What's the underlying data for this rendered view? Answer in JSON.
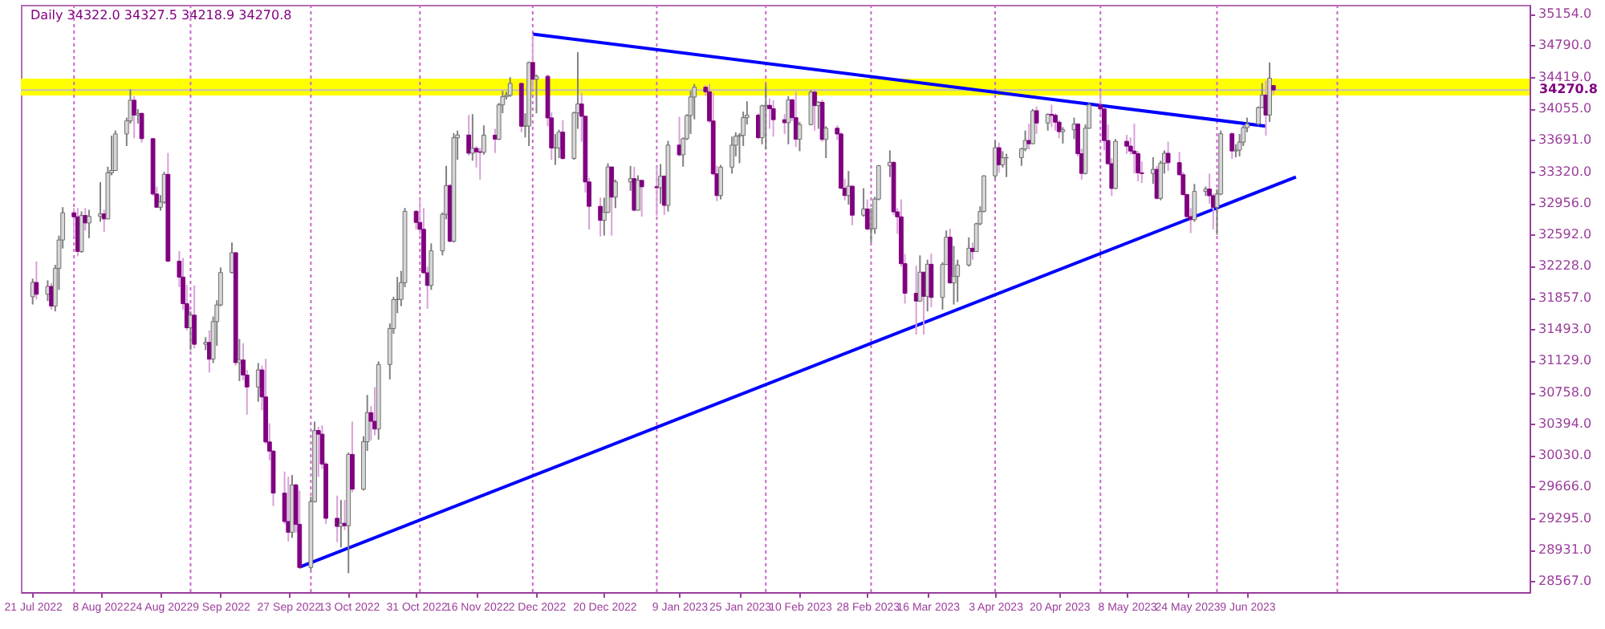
{
  "chart_data": {
    "type": "candlestick",
    "title": "Daily 34322.0 34327.5 34218.9 34270.8",
    "x": [
      "2022-07-21",
      "2022-07-22",
      "2022-07-25",
      "2022-07-26",
      "2022-07-27",
      "2022-07-28",
      "2022-07-29",
      "2022-08-01",
      "2022-08-02",
      "2022-08-03",
      "2022-08-04",
      "2022-08-05",
      "2022-08-08",
      "2022-08-09",
      "2022-08-10",
      "2022-08-11",
      "2022-08-12",
      "2022-08-15",
      "2022-08-16",
      "2022-08-17",
      "2022-08-18",
      "2022-08-19",
      "2022-08-22",
      "2022-08-23",
      "2022-08-24",
      "2022-08-25",
      "2022-08-26",
      "2022-08-29",
      "2022-08-30",
      "2022-08-31",
      "2022-09-01",
      "2022-09-02",
      "2022-09-05",
      "2022-09-06",
      "2022-09-07",
      "2022-09-08",
      "2022-09-09",
      "2022-09-12",
      "2022-09-13",
      "2022-09-14",
      "2022-09-15",
      "2022-09-16",
      "2022-09-19",
      "2022-09-20",
      "2022-09-21",
      "2022-09-22",
      "2022-09-23",
      "2022-09-26",
      "2022-09-27",
      "2022-09-28",
      "2022-09-29",
      "2022-09-30",
      "2022-10-03",
      "2022-10-04",
      "2022-10-05",
      "2022-10-06",
      "2022-10-07",
      "2022-10-10",
      "2022-10-11",
      "2022-10-12",
      "2022-10-13",
      "2022-10-14",
      "2022-10-17",
      "2022-10-18",
      "2022-10-19",
      "2022-10-20",
      "2022-10-21",
      "2022-10-24",
      "2022-10-25",
      "2022-10-26",
      "2022-10-27",
      "2022-10-28",
      "2022-10-31",
      "2022-11-01",
      "2022-11-02",
      "2022-11-03",
      "2022-11-04",
      "2022-11-07",
      "2022-11-08",
      "2022-11-09",
      "2022-11-10",
      "2022-11-11",
      "2022-11-14",
      "2022-11-15",
      "2022-11-16",
      "2022-11-17",
      "2022-11-18",
      "2022-11-21",
      "2022-11-22",
      "2022-11-23",
      "2022-11-24",
      "2022-11-25",
      "2022-11-28",
      "2022-11-29",
      "2022-11-30",
      "2022-12-01",
      "2022-12-02",
      "2022-12-05",
      "2022-12-06",
      "2022-12-07",
      "2022-12-08",
      "2022-12-09",
      "2022-12-12",
      "2022-12-13",
      "2022-12-14",
      "2022-12-15",
      "2022-12-16",
      "2022-12-19",
      "2022-12-20",
      "2022-12-21",
      "2022-12-22",
      "2022-12-23",
      "2022-12-27",
      "2022-12-28",
      "2022-12-29",
      "2022-12-30",
      "2023-01-03",
      "2023-01-04",
      "2023-01-05",
      "2023-01-06",
      "2023-01-09",
      "2023-01-10",
      "2023-01-11",
      "2023-01-12",
      "2023-01-13",
      "2023-01-16",
      "2023-01-17",
      "2023-01-18",
      "2023-01-19",
      "2023-01-20",
      "2023-01-23",
      "2023-01-24",
      "2023-01-25",
      "2023-01-26",
      "2023-01-27",
      "2023-01-30",
      "2023-01-31",
      "2023-02-01",
      "2023-02-02",
      "2023-02-03",
      "2023-02-06",
      "2023-02-07",
      "2023-02-08",
      "2023-02-09",
      "2023-02-10",
      "2023-02-13",
      "2023-02-14",
      "2023-02-15",
      "2023-02-16",
      "2023-02-17",
      "2023-02-20",
      "2023-02-21",
      "2023-02-22",
      "2023-02-23",
      "2023-02-24",
      "2023-02-27",
      "2023-02-28",
      "2023-03-01",
      "2023-03-02",
      "2023-03-03",
      "2023-03-06",
      "2023-03-07",
      "2023-03-08",
      "2023-03-09",
      "2023-03-10",
      "2023-03-13",
      "2023-03-14",
      "2023-03-15",
      "2023-03-16",
      "2023-03-17",
      "2023-03-20",
      "2023-03-21",
      "2023-03-22",
      "2023-03-23",
      "2023-03-24",
      "2023-03-27",
      "2023-03-28",
      "2023-03-29",
      "2023-03-30",
      "2023-03-31",
      "2023-04-03",
      "2023-04-04",
      "2023-04-05",
      "2023-04-06",
      "2023-04-10",
      "2023-04-11",
      "2023-04-12",
      "2023-04-13",
      "2023-04-14",
      "2023-04-17",
      "2023-04-18",
      "2023-04-19",
      "2023-04-20",
      "2023-04-21",
      "2023-04-24",
      "2023-04-25",
      "2023-04-26",
      "2023-04-27",
      "2023-04-28",
      "2023-05-01",
      "2023-05-02",
      "2023-05-03",
      "2023-05-04",
      "2023-05-05",
      "2023-05-08",
      "2023-05-09",
      "2023-05-10",
      "2023-05-11",
      "2023-05-12",
      "2023-05-15",
      "2023-05-16",
      "2023-05-17",
      "2023-05-18",
      "2023-05-19",
      "2023-05-22",
      "2023-05-23",
      "2023-05-24",
      "2023-05-25",
      "2023-05-26",
      "2023-05-29",
      "2023-05-30",
      "2023-05-31",
      "2023-06-01",
      "2023-06-02",
      "2023-06-05",
      "2023-06-06",
      "2023-06-07",
      "2023-06-08",
      "2023-06-09",
      "2023-06-12",
      "2023-06-13",
      "2023-06-14",
      "2023-06-15",
      "2023-06-16"
    ],
    "ohlc": [
      [
        31870,
        32080,
        31780,
        32036
      ],
      [
        32036,
        32280,
        31840,
        31899
      ],
      [
        31899,
        32060,
        31820,
        31990
      ],
      [
        31990,
        32030,
        31720,
        31762
      ],
      [
        31762,
        32240,
        31700,
        32198
      ],
      [
        32198,
        32580,
        31950,
        32529
      ],
      [
        32529,
        32910,
        32430,
        32845
      ],
      [
        32845,
        32900,
        32570,
        32798
      ],
      [
        32798,
        32900,
        32340,
        32396
      ],
      [
        32396,
        32860,
        32380,
        32813
      ],
      [
        32813,
        32900,
        32640,
        32727
      ],
      [
        32727,
        32880,
        32550,
        32803
      ],
      [
        32803,
        33200,
        32740,
        32832
      ],
      [
        32832,
        32880,
        32620,
        32774
      ],
      [
        32774,
        33380,
        32770,
        33309
      ],
      [
        33309,
        33740,
        33280,
        33336
      ],
      [
        33336,
        33800,
        33330,
        33761
      ],
      [
        33761,
        33950,
        33620,
        33912
      ],
      [
        33912,
        34280,
        33880,
        34152
      ],
      [
        34152,
        34200,
        33710,
        33980
      ],
      [
        33980,
        34050,
        33880,
        33999
      ],
      [
        33999,
        34010,
        33660,
        33706
      ],
      [
        33706,
        33710,
        33040,
        33063
      ],
      [
        33063,
        33150,
        32900,
        32909
      ],
      [
        32909,
        33050,
        32870,
        32969
      ],
      [
        32969,
        33320,
        32950,
        33291
      ],
      [
        33291,
        33540,
        32270,
        32283
      ],
      [
        32283,
        32400,
        31980,
        32098
      ],
      [
        32098,
        32320,
        31720,
        31790
      ],
      [
        31790,
        32010,
        31480,
        31510
      ],
      [
        31510,
        31700,
        31250,
        31656
      ],
      [
        31656,
        32000,
        31270,
        31318
      ],
      [
        31318,
        31400,
        31250,
        31340
      ],
      [
        31340,
        31480,
        30990,
        31145
      ],
      [
        31145,
        31640,
        31100,
        31581
      ],
      [
        31581,
        31830,
        31300,
        31775
      ],
      [
        31775,
        32210,
        31760,
        32151
      ],
      [
        32151,
        32500,
        32140,
        32381
      ],
      [
        32381,
        32390,
        31070,
        31105
      ],
      [
        31105,
        31380,
        30890,
        31135
      ],
      [
        31135,
        31330,
        30900,
        30961
      ],
      [
        30961,
        31020,
        30500,
        30822
      ],
      [
        30822,
        31100,
        30650,
        31020
      ],
      [
        31020,
        31070,
        30550,
        30706
      ],
      [
        30706,
        31150,
        30160,
        30184
      ],
      [
        30184,
        30400,
        29970,
        30077
      ],
      [
        30077,
        30090,
        29440,
        29590
      ],
      [
        29590,
        29840,
        29230,
        29260
      ],
      [
        29260,
        29780,
        29030,
        29135
      ],
      [
        29135,
        29800,
        29070,
        29684
      ],
      [
        29684,
        29700,
        29130,
        29226
      ],
      [
        29226,
        29620,
        28710,
        28726
      ],
      [
        28726,
        29550,
        28700,
        29490
      ],
      [
        29490,
        30420,
        29480,
        30316
      ],
      [
        30316,
        30360,
        29780,
        30274
      ],
      [
        30274,
        30380,
        29870,
        29927
      ],
      [
        29927,
        29950,
        29230,
        29297
      ],
      [
        29297,
        29560,
        29020,
        29203
      ],
      [
        29203,
        29510,
        28960,
        29240
      ],
      [
        29240,
        29510,
        29160,
        29211
      ],
      [
        29211,
        30060,
        28660,
        30039
      ],
      [
        30039,
        30420,
        29600,
        29635
      ],
      [
        29635,
        30250,
        29620,
        30186
      ],
      [
        30186,
        30730,
        30080,
        30524
      ],
      [
        30524,
        30600,
        30200,
        30424
      ],
      [
        30424,
        30820,
        30260,
        30334
      ],
      [
        30334,
        31120,
        30210,
        31083
      ],
      [
        31083,
        31560,
        30910,
        31500
      ],
      [
        31500,
        31870,
        31440,
        31837
      ],
      [
        31837,
        32100,
        31680,
        31839
      ],
      [
        31839,
        32170,
        31760,
        32034
      ],
      [
        32034,
        32900,
        31980,
        32862
      ],
      [
        32862,
        32880,
        32650,
        32733
      ],
      [
        32733,
        33010,
        32590,
        32653
      ],
      [
        32653,
        32900,
        32140,
        32148
      ],
      [
        32148,
        32220,
        31730,
        32001
      ],
      [
        32001,
        32490,
        31950,
        32403
      ],
      [
        32403,
        32850,
        32350,
        32827
      ],
      [
        32827,
        33390,
        32770,
        33161
      ],
      [
        33161,
        33180,
        32500,
        32514
      ],
      [
        32514,
        33770,
        32500,
        33716
      ],
      [
        33716,
        33800,
        33460,
        33748
      ],
      [
        33748,
        33980,
        33510,
        33537
      ],
      [
        33537,
        33990,
        33450,
        33593
      ],
      [
        33593,
        33620,
        33370,
        33553
      ],
      [
        33553,
        33600,
        33230,
        33547
      ],
      [
        33547,
        33860,
        33520,
        33746
      ],
      [
        33746,
        33820,
        33540,
        33700
      ],
      [
        33700,
        34120,
        33690,
        34098
      ],
      [
        34098,
        34260,
        34000,
        34194
      ],
      [
        34194,
        34250,
        34160,
        34210
      ],
      [
        34210,
        34420,
        34190,
        34347
      ],
      [
        34347,
        34360,
        33780,
        33850
      ],
      [
        33850,
        34000,
        33720,
        33853
      ],
      [
        33853,
        34600,
        33620,
        34590
      ],
      [
        34590,
        34920,
        34270,
        34395
      ],
      [
        34395,
        34450,
        34000,
        34430
      ],
      [
        34430,
        34450,
        33850,
        33947
      ],
      [
        33947,
        34010,
        33460,
        33597
      ],
      [
        33597,
        33760,
        33400,
        33598
      ],
      [
        33598,
        33810,
        33480,
        33781
      ],
      [
        33781,
        33920,
        33460,
        33476
      ],
      [
        33476,
        34020,
        33460,
        34005
      ],
      [
        34005,
        34710,
        33820,
        34108
      ],
      [
        34108,
        34240,
        33670,
        33966
      ],
      [
        33966,
        33970,
        33080,
        33203
      ],
      [
        33203,
        33250,
        32650,
        32920
      ],
      [
        32920,
        33020,
        32570,
        32757
      ],
      [
        32757,
        33020,
        32580,
        32850
      ],
      [
        32850,
        33420,
        32840,
        33377
      ],
      [
        33377,
        33380,
        32580,
        33027
      ],
      [
        33027,
        33230,
        32900,
        33204
      ],
      [
        33204,
        33390,
        33100,
        33241
      ],
      [
        33241,
        33380,
        32860,
        32875
      ],
      [
        32875,
        33280,
        32870,
        33221
      ],
      [
        33221,
        33230,
        32800,
        33147
      ],
      [
        33147,
        33380,
        32810,
        33136
      ],
      [
        33136,
        33410,
        32950,
        33270
      ],
      [
        33270,
        33280,
        32820,
        32931
      ],
      [
        32931,
        33680,
        32860,
        33631
      ],
      [
        33631,
        33960,
        33500,
        33518
      ],
      [
        33518,
        33720,
        33380,
        33705
      ],
      [
        33705,
        33990,
        33690,
        33974
      ],
      [
        33974,
        34260,
        33760,
        34190
      ],
      [
        34190,
        34340,
        33930,
        34303
      ],
      [
        34303,
        34330,
        34200,
        34250
      ],
      [
        34250,
        34340,
        33890,
        33911
      ],
      [
        33911,
        34240,
        33280,
        33297
      ],
      [
        33297,
        33390,
        32980,
        33045
      ],
      [
        33045,
        33400,
        33000,
        33375
      ],
      [
        33375,
        33730,
        33300,
        33630
      ],
      [
        33630,
        33780,
        33500,
        33734
      ],
      [
        33734,
        33770,
        33420,
        33744
      ],
      [
        33744,
        34020,
        33620,
        33950
      ],
      [
        33950,
        34140,
        33870,
        33978
      ],
      [
        33978,
        34000,
        33700,
        33717
      ],
      [
        33717,
        34100,
        33640,
        34086
      ],
      [
        34086,
        34330,
        33580,
        34093
      ],
      [
        34093,
        34170,
        33820,
        34054
      ],
      [
        34054,
        34150,
        33730,
        33926
      ],
      [
        33926,
        33990,
        33760,
        33891
      ],
      [
        33891,
        34200,
        33640,
        34156
      ],
      [
        34156,
        34170,
        33910,
        33949
      ],
      [
        33949,
        34250,
        33610,
        33699
      ],
      [
        33699,
        33900,
        33560,
        33869
      ],
      [
        33869,
        34270,
        33860,
        34246
      ],
      [
        34246,
        34280,
        33800,
        34089
      ],
      [
        34089,
        34140,
        33820,
        34128
      ],
      [
        34128,
        34160,
        33670,
        33697
      ],
      [
        33697,
        33850,
        33480,
        33827
      ],
      [
        33827,
        33860,
        33690,
        33760
      ],
      [
        33760,
        33780,
        33120,
        33130
      ],
      [
        33130,
        33240,
        32990,
        33045
      ],
      [
        33045,
        33330,
        32940,
        33154
      ],
      [
        33154,
        33160,
        32700,
        32817
      ],
      [
        32817,
        33130,
        32800,
        32889
      ],
      [
        32889,
        33000,
        32640,
        32657
      ],
      [
        32657,
        32900,
        32500,
        32662
      ],
      [
        32662,
        33030,
        32600,
        33004
      ],
      [
        33004,
        33400,
        32990,
        33391
      ],
      [
        33391,
        33570,
        33260,
        33431
      ],
      [
        33431,
        33440,
        32820,
        32856
      ],
      [
        32856,
        32900,
        32600,
        32798
      ],
      [
        32798,
        33000,
        32220,
        32254
      ],
      [
        32254,
        32370,
        31790,
        31910
      ],
      [
        31910,
        32230,
        31430,
        31820
      ],
      [
        31820,
        32350,
        31810,
        32155
      ],
      [
        32155,
        32160,
        31430,
        31875
      ],
      [
        31875,
        32300,
        31700,
        32247
      ],
      [
        32247,
        32370,
        31750,
        31862
      ],
      [
        31862,
        32270,
        31720,
        32245
      ],
      [
        32245,
        32640,
        32240,
        32561
      ],
      [
        32561,
        32660,
        32020,
        32031
      ],
      [
        32031,
        32460,
        31780,
        32106
      ],
      [
        32106,
        32300,
        31810,
        32238
      ],
      [
        32238,
        32560,
        32220,
        32433
      ],
      [
        32433,
        32500,
        32300,
        32394
      ],
      [
        32394,
        32730,
        32390,
        32717
      ],
      [
        32717,
        32920,
        32700,
        32860
      ],
      [
        32860,
        33280,
        32850,
        33274
      ],
      [
        33274,
        33680,
        33240,
        33601
      ],
      [
        33601,
        33660,
        33310,
        33403
      ],
      [
        33403,
        33560,
        33370,
        33483
      ],
      [
        33483,
        33530,
        33260,
        33485
      ],
      [
        33485,
        33600,
        33390,
        33587
      ],
      [
        33587,
        33800,
        33560,
        33685
      ],
      [
        33685,
        33880,
        33580,
        33647
      ],
      [
        33647,
        34050,
        33640,
        34030
      ],
      [
        34030,
        34080,
        33760,
        33887
      ],
      [
        33887,
        34000,
        33800,
        33988
      ],
      [
        33988,
        34100,
        33840,
        33977
      ],
      [
        33977,
        34000,
        33800,
        33897
      ],
      [
        33897,
        33920,
        33710,
        33787
      ],
      [
        33787,
        33840,
        33650,
        33809
      ],
      [
        33809,
        33950,
        33700,
        33875
      ],
      [
        33875,
        33880,
        33500,
        33531
      ],
      [
        33531,
        33590,
        33230,
        33302
      ],
      [
        33302,
        33870,
        33290,
        33827
      ],
      [
        33827,
        34120,
        33820,
        34098
      ],
      [
        34098,
        34260,
        33990,
        34051
      ],
      [
        34051,
        34060,
        33570,
        33684
      ],
      [
        33684,
        33870,
        33400,
        33415
      ],
      [
        33415,
        33480,
        33040,
        33128
      ],
      [
        33128,
        33700,
        33120,
        33675
      ],
      [
        33675,
        33750,
        33530,
        33619
      ],
      [
        33619,
        33720,
        33520,
        33562
      ],
      [
        33562,
        33880,
        33300,
        33531
      ],
      [
        33531,
        33560,
        33210,
        33309
      ],
      [
        33309,
        33440,
        33190,
        33301
      ],
      [
        33301,
        33490,
        33180,
        33349
      ],
      [
        33349,
        33390,
        33000,
        33013
      ],
      [
        33013,
        33450,
        32990,
        33421
      ],
      [
        33421,
        33570,
        33300,
        33536
      ],
      [
        33536,
        33670,
        33330,
        33427
      ],
      [
        33427,
        33550,
        33270,
        33287
      ],
      [
        33287,
        33320,
        33040,
        33056
      ],
      [
        33056,
        33070,
        32780,
        32800
      ],
      [
        32800,
        32900,
        32610,
        32765
      ],
      [
        32765,
        33180,
        32740,
        33093
      ],
      [
        33093,
        33150,
        33040,
        33120
      ],
      [
        33120,
        33300,
        32950,
        33043
      ],
      [
        33043,
        33070,
        32650,
        32908
      ],
      [
        32908,
        33120,
        32590,
        33062
      ],
      [
        33062,
        33800,
        33050,
        33763
      ],
      [
        33763,
        33780,
        33470,
        33563
      ],
      [
        33563,
        33640,
        33490,
        33573
      ],
      [
        33573,
        33760,
        33500,
        33665
      ],
      [
        33665,
        33860,
        33620,
        33834
      ],
      [
        33834,
        33950,
        33780,
        33877
      ],
      [
        33877,
        34080,
        33860,
        34066
      ],
      [
        34066,
        34350,
        34060,
        34212
      ],
      [
        34212,
        34380,
        33740,
        33980
      ],
      [
        33980,
        34590,
        33900,
        34408
      ],
      [
        34322.0,
        34327.5,
        34218.9,
        34270.8
      ]
    ],
    "series": [
      {
        "type": "line",
        "color": "#0000ff",
        "x": [
          "2022-12-01",
          "2023-06-14"
        ],
        "values": [
          34920,
          33850
        ]
      },
      {
        "type": "line",
        "color": "#0000ff",
        "x": [
          "2022-09-30",
          "2023-06-22"
        ],
        "values": [
          28730,
          33260
        ]
      }
    ],
    "xlim": [
      "2022-07-20",
      "2023-08-21"
    ],
    "xticks": [
      {
        "value": "2022-07-21",
        "label": "21 Jul 2022"
      },
      {
        "value": "2022-08-08",
        "label": "8 Aug 2022"
      },
      {
        "value": "2022-08-24",
        "label": "24 Aug 2022"
      },
      {
        "value": "2022-09-09",
        "label": "9 Sep 2022"
      },
      {
        "value": "2022-09-27",
        "label": "27 Sep 2022"
      },
      {
        "value": "2022-10-13",
        "label": "13 Oct 2022"
      },
      {
        "value": "2022-10-31",
        "label": "31 Oct 2022"
      },
      {
        "value": "2022-11-16",
        "label": "16 Nov 2022"
      },
      {
        "value": "2022-12-02",
        "label": "2 Dec 2022"
      },
      {
        "value": "2022-12-20",
        "label": "20 Dec 2022"
      },
      {
        "value": "2023-01-09",
        "label": "9 Jan 2023"
      },
      {
        "value": "2023-01-25",
        "label": "25 Jan 2023"
      },
      {
        "value": "2023-02-10",
        "label": "10 Feb 2023"
      },
      {
        "value": "2023-02-28",
        "label": "28 Feb 2023"
      },
      {
        "value": "2023-03-16",
        "label": "16 Mar 2023"
      },
      {
        "value": "2023-04-03",
        "label": "3 Apr 2023"
      },
      {
        "value": "2023-04-20",
        "label": "20 Apr 2023"
      },
      {
        "value": "2023-05-08",
        "label": "8 May 2023"
      },
      {
        "value": "2023-05-24",
        "label": "24 May 2023"
      },
      {
        "value": "2023-06-09",
        "label": "9 Jun 2023"
      }
    ],
    "ylim": [
      28440,
      35260
    ],
    "yticks": [
      {
        "value": 35154,
        "label": "35154.0"
      },
      {
        "value": 34790,
        "label": "34790.0"
      },
      {
        "value": 34419,
        "label": "34419.0"
      },
      {
        "value": 34055,
        "label": "34055.0"
      },
      {
        "value": 33691,
        "label": "33691.0"
      },
      {
        "value": 33320,
        "label": "33320.0"
      },
      {
        "value": 32956,
        "label": "32956.0"
      },
      {
        "value": 32592,
        "label": "32592.0"
      },
      {
        "value": 32228,
        "label": "32228.0"
      },
      {
        "value": 31857,
        "label": "31857.0"
      },
      {
        "value": 31493,
        "label": "31493.0"
      },
      {
        "value": 31129,
        "label": "31129.0"
      },
      {
        "value": 30758,
        "label": "30758.0"
      },
      {
        "value": 30394,
        "label": "30394.0"
      },
      {
        "value": 30030,
        "label": "30030.0"
      },
      {
        "value": 29666,
        "label": "29666.0"
      },
      {
        "value": 29295,
        "label": "29295.0"
      },
      {
        "value": 28931,
        "label": "28931.0"
      },
      {
        "value": 28567,
        "label": "28567.0"
      }
    ],
    "bands": [
      {
        "axis": "y",
        "from": 34208,
        "to": 34404,
        "color": "#ffff00"
      }
    ],
    "ref_lines": [
      {
        "axis": "y",
        "value": 34270.8,
        "label": "34270.8",
        "color": "#c0c0c0",
        "line_style": "solid"
      },
      {
        "axis": "x",
        "value": "2022-08-01",
        "color": "#cc66cc",
        "line_style": "dotted"
      },
      {
        "axis": "x",
        "value": "2022-09-01",
        "color": "#cc66cc",
        "line_style": "dotted"
      },
      {
        "axis": "x",
        "value": "2022-10-03",
        "color": "#cc66cc",
        "line_style": "dotted"
      },
      {
        "axis": "x",
        "value": "2022-11-01",
        "color": "#cc66cc",
        "line_style": "dotted"
      },
      {
        "axis": "x",
        "value": "2022-12-01",
        "color": "#cc66cc",
        "line_style": "dotted"
      },
      {
        "axis": "x",
        "value": "2023-01-03",
        "color": "#cc66cc",
        "line_style": "dotted"
      },
      {
        "axis": "x",
        "value": "2023-02-01",
        "color": "#cc66cc",
        "line_style": "dotted"
      },
      {
        "axis": "x",
        "value": "2023-03-01",
        "color": "#cc66cc",
        "line_style": "dotted"
      },
      {
        "axis": "x",
        "value": "2023-04-03",
        "color": "#cc66cc",
        "line_style": "dotted"
      },
      {
        "axis": "x",
        "value": "2023-05-01",
        "color": "#cc66cc",
        "line_style": "dotted"
      },
      {
        "axis": "x",
        "value": "2023-06-01",
        "color": "#cc66cc",
        "line_style": "dotted"
      },
      {
        "axis": "x",
        "value": "2023-07-03",
        "color": "#cc66cc",
        "line_style": "dotted"
      }
    ],
    "grid": false
  }
}
